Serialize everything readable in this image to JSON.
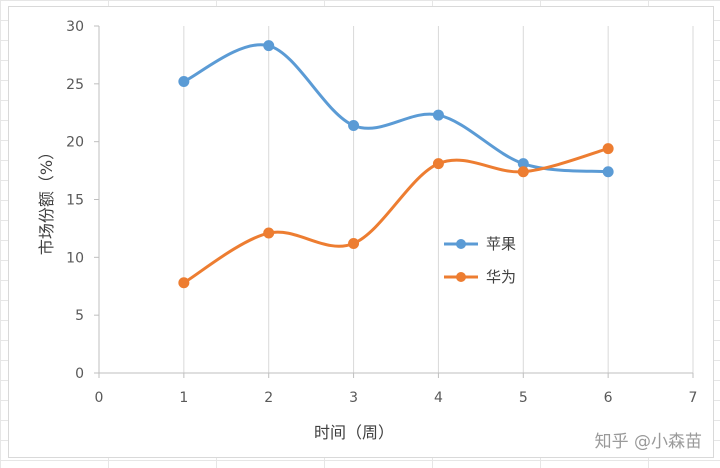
{
  "chart_data": {
    "type": "line",
    "smooth": true,
    "xlabel": "时间（周）",
    "ylabel": "市场份额（%）",
    "xlim": [
      0,
      7
    ],
    "ylim": [
      0,
      30
    ],
    "x_ticks": [
      0,
      1,
      2,
      3,
      4,
      5,
      6,
      7
    ],
    "y_ticks": [
      0,
      5,
      10,
      15,
      20,
      25,
      30
    ],
    "grid": "vertical",
    "legend_position": "center-right",
    "series": [
      {
        "name": "苹果",
        "color": "#5b9bd5",
        "x": [
          1,
          2,
          3,
          4,
          5,
          6
        ],
        "y": [
          25.2,
          28.3,
          21.4,
          22.3,
          18.1,
          17.4
        ]
      },
      {
        "name": "华为",
        "color": "#ed7d31",
        "x": [
          1,
          2,
          3,
          4,
          5,
          6
        ],
        "y": [
          7.8,
          12.1,
          11.2,
          18.1,
          17.4,
          19.4
        ]
      }
    ]
  },
  "watermark": "知乎 @小森苗"
}
